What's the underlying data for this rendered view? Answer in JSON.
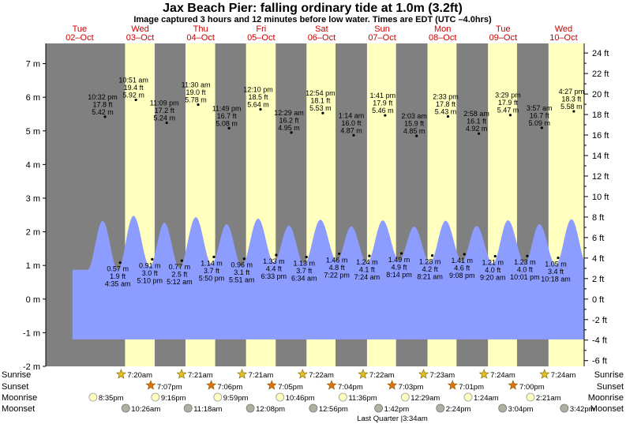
{
  "title": "Jax Beach Pier: falling  ordinary tide at 1.0m (3.2ft)",
  "subtitle": "Image captured 3 hours and 12 minutes before low water. Times are EDT (UTC –4.0hrs)",
  "colors": {
    "night": "#808080",
    "day": "#ffffc0",
    "tide": "#8c9cff",
    "sunrise": "#e0c020",
    "sunset": "#e07010",
    "moonrise": "#ffffc0",
    "moonset": "#b0b0a0",
    "day_text": "#cc0000"
  },
  "chart_data": {
    "type": "area",
    "title": "Jax Beach Pier: falling  ordinary tide at 1.0m (3.2ft)",
    "xlabel": "",
    "ylabel": "",
    "x_range_days": [
      0.0,
      8.9
    ],
    "ylim_m": [
      -2,
      7.6
    ],
    "left_axis_ticks": [
      "-2 m",
      "-1 m",
      "0 m",
      "1 m",
      "2 m",
      "3 m",
      "4 m",
      "5 m",
      "6 m",
      "7 m"
    ],
    "right_axis_ticks": [
      "-6 ft",
      "-4 ft",
      "-2 ft",
      "0 ft",
      "2 ft",
      "4 ft",
      "6 ft",
      "8 ft",
      "10 ft",
      "12 ft",
      "14 ft",
      "16 ft",
      "18 ft",
      "20 ft",
      "22 ft",
      "24 ft"
    ],
    "days": [
      {
        "dow": "Tue",
        "date": "02–Oct"
      },
      {
        "dow": "Wed",
        "date": "03–Oct"
      },
      {
        "dow": "Thu",
        "date": "04–Oct"
      },
      {
        "dow": "Fri",
        "date": "05–Oct"
      },
      {
        "dow": "Sat",
        "date": "06–Oct"
      },
      {
        "dow": "Sun",
        "date": "07–Oct"
      },
      {
        "dow": "Mon",
        "date": "08–Oct"
      },
      {
        "dow": "Tue",
        "date": "09–Oct"
      },
      {
        "dow": "Wed",
        "date": "10–Oct"
      }
    ],
    "high_tides": [
      {
        "t": 0.94,
        "time": "10:32 pm",
        "ft": "17.8 ft",
        "m": "5.42 m",
        "h": 5.42
      },
      {
        "t": 1.45,
        "time": "10:51 am",
        "ft": "19.4 ft",
        "m": "5.92 m",
        "h": 5.92
      },
      {
        "t": 1.96,
        "time": "11:09 pm",
        "ft": "17.2 ft",
        "m": "5.24 m",
        "h": 5.24
      },
      {
        "t": 2.48,
        "time": "11:30 am",
        "ft": "19.0 ft",
        "m": "5.78 m",
        "h": 5.78
      },
      {
        "t": 2.99,
        "time": "11:49 pm",
        "ft": "16.7 ft",
        "m": "5.08 m",
        "h": 5.08
      },
      {
        "t": 3.51,
        "time": "12:10 pm",
        "ft": "18.5 ft",
        "m": "5.64 m",
        "h": 5.64
      },
      {
        "t": 4.02,
        "time": "12:29 am",
        "ft": "16.2 ft",
        "m": "4.95 m",
        "h": 4.95
      },
      {
        "t": 4.54,
        "time": "12:54 pm",
        "ft": "18.1 ft",
        "m": "5.53 m",
        "h": 5.53
      },
      {
        "t": 5.05,
        "time": "1:14 am",
        "ft": "16.0 ft",
        "m": "4.87 m",
        "h": 4.87
      },
      {
        "t": 5.57,
        "time": "1:41 pm",
        "ft": "17.9 ft",
        "m": "5.46 m",
        "h": 5.46
      },
      {
        "t": 6.09,
        "time": "2:03 am",
        "ft": "15.9 ft",
        "m": "4.85 m",
        "h": 4.85
      },
      {
        "t": 6.61,
        "time": "2:33 pm",
        "ft": "17.8 ft",
        "m": "5.43 m",
        "h": 5.43
      },
      {
        "t": 7.12,
        "time": "2:58 am",
        "ft": "16.1 ft",
        "m": "4.92 m",
        "h": 4.92
      },
      {
        "t": 7.64,
        "time": "3:29 pm",
        "ft": "17.9 ft",
        "m": "5.47 m",
        "h": 5.47
      },
      {
        "t": 8.16,
        "time": "3:57 am",
        "ft": "16.7 ft",
        "m": "5.09 m",
        "h": 5.09
      },
      {
        "t": 8.69,
        "time": "4:27 pm",
        "ft": "18.3 ft",
        "m": "5.58 m",
        "h": 5.58
      }
    ],
    "low_tides": [
      {
        "t": 1.19,
        "time": "4:35 am",
        "ft": "1.9 ft",
        "m": "0.57 m",
        "h": 0.57
      },
      {
        "t": 1.72,
        "time": "5:10 pm",
        "ft": "3.0 ft",
        "m": "0.91 m",
        "h": 0.91
      },
      {
        "t": 2.21,
        "time": "5:12 am",
        "ft": "2.5 ft",
        "m": "0.77 m",
        "h": 0.77
      },
      {
        "t": 2.74,
        "time": "5:50 pm",
        "ft": "3.7 ft",
        "m": "1.14 m",
        "h": 1.14
      },
      {
        "t": 3.24,
        "time": "5:51 am",
        "ft": "3.1 ft",
        "m": "0.96 m",
        "h": 0.96
      },
      {
        "t": 3.77,
        "time": "6:33 pm",
        "ft": "4.4 ft",
        "m": "1.33 m",
        "h": 1.33
      },
      {
        "t": 4.27,
        "time": "6:34 am",
        "ft": "3.7 ft",
        "m": "1.13 m",
        "h": 1.13
      },
      {
        "t": 4.81,
        "time": "7:22 pm",
        "ft": "4.8 ft",
        "m": "1.46 m",
        "h": 1.46
      },
      {
        "t": 5.31,
        "time": "7:24 am",
        "ft": "4.1 ft",
        "m": "1.24 m",
        "h": 1.24
      },
      {
        "t": 5.84,
        "time": "8:14 pm",
        "ft": "4.9 ft",
        "m": "1.49 m",
        "h": 1.49
      },
      {
        "t": 6.35,
        "time": "8:21 am",
        "ft": "4.2 ft",
        "m": "1.28 m",
        "h": 1.28
      },
      {
        "t": 6.88,
        "time": "9:08 pm",
        "ft": "4.6 ft",
        "m": "1.41 m",
        "h": 1.41
      },
      {
        "t": 7.39,
        "time": "9:20 am",
        "ft": "4.0 ft",
        "m": "1.21 m",
        "h": 1.21
      },
      {
        "t": 7.92,
        "time": "10:01 pm",
        "ft": "4.0 ft",
        "m": "1.23 m",
        "h": 1.23
      },
      {
        "t": 8.43,
        "time": "10:18 am",
        "ft": "3.4 ft",
        "m": "1.05 m",
        "h": 1.05
      }
    ],
    "daylight": [
      {
        "rise": 1.31,
        "set": 1.8
      },
      {
        "rise": 2.31,
        "set": 2.8
      },
      {
        "rise": 3.31,
        "set": 3.8
      },
      {
        "rise": 4.31,
        "set": 4.79
      },
      {
        "rise": 5.31,
        "set": 5.79
      },
      {
        "rise": 6.31,
        "set": 6.79
      },
      {
        "rise": 7.31,
        "set": 7.79
      },
      {
        "rise": 8.31,
        "set": 8.9
      }
    ],
    "ocean_level_m": 1.0,
    "ocean_level_ft": 3.2,
    "time_to_low_water": "3 hours and 12 minutes"
  },
  "rows": {
    "sunrise": {
      "label": "Sunrise",
      "events": [
        {
          "t": 1.31,
          "text": "7:20am"
        },
        {
          "t": 2.31,
          "text": "7:21am"
        },
        {
          "t": 3.31,
          "text": "7:21am"
        },
        {
          "t": 4.31,
          "text": "7:22am"
        },
        {
          "t": 5.31,
          "text": "7:22am"
        },
        {
          "t": 6.31,
          "text": "7:23am"
        },
        {
          "t": 7.31,
          "text": "7:24am"
        },
        {
          "t": 8.31,
          "text": "7:24am"
        }
      ]
    },
    "sunset": {
      "label": "Sunset",
      "events": [
        {
          "t": 1.8,
          "text": "7:07pm"
        },
        {
          "t": 2.8,
          "text": "7:06pm"
        },
        {
          "t": 3.8,
          "text": "7:05pm"
        },
        {
          "t": 4.79,
          "text": "7:04pm"
        },
        {
          "t": 5.79,
          "text": "7:03pm"
        },
        {
          "t": 6.79,
          "text": "7:01pm"
        },
        {
          "t": 7.79,
          "text": "7:00pm"
        }
      ]
    },
    "moonrise": {
      "label": "Moonrise",
      "events": [
        {
          "t": 0.86,
          "text": "8:35pm"
        },
        {
          "t": 1.89,
          "text": "9:16pm"
        },
        {
          "t": 2.92,
          "text": "9:59pm"
        },
        {
          "t": 3.95,
          "text": "10:46pm"
        },
        {
          "t": 4.99,
          "text": "11:36pm"
        },
        {
          "t": 6.02,
          "text": "12:29am"
        },
        {
          "t": 7.06,
          "text": "1:24am"
        },
        {
          "t": 8.09,
          "text": "2:21am"
        }
      ]
    },
    "moonset": {
      "label": "Moonset",
      "events": [
        {
          "t": 1.4,
          "text": "10:26am"
        },
        {
          "t": 2.43,
          "text": "11:18am"
        },
        {
          "t": 3.46,
          "text": "12:08pm"
        },
        {
          "t": 4.5,
          "text": "12:56pm"
        },
        {
          "t": 5.58,
          "text": "1:42pm"
        },
        {
          "t": 6.6,
          "text": "2:24pm"
        },
        {
          "t": 7.63,
          "text": "3:04pm"
        },
        {
          "t": 8.65,
          "text": "3:42pm"
        }
      ]
    }
  },
  "moon_phase": "Last Quarter |3:34am"
}
